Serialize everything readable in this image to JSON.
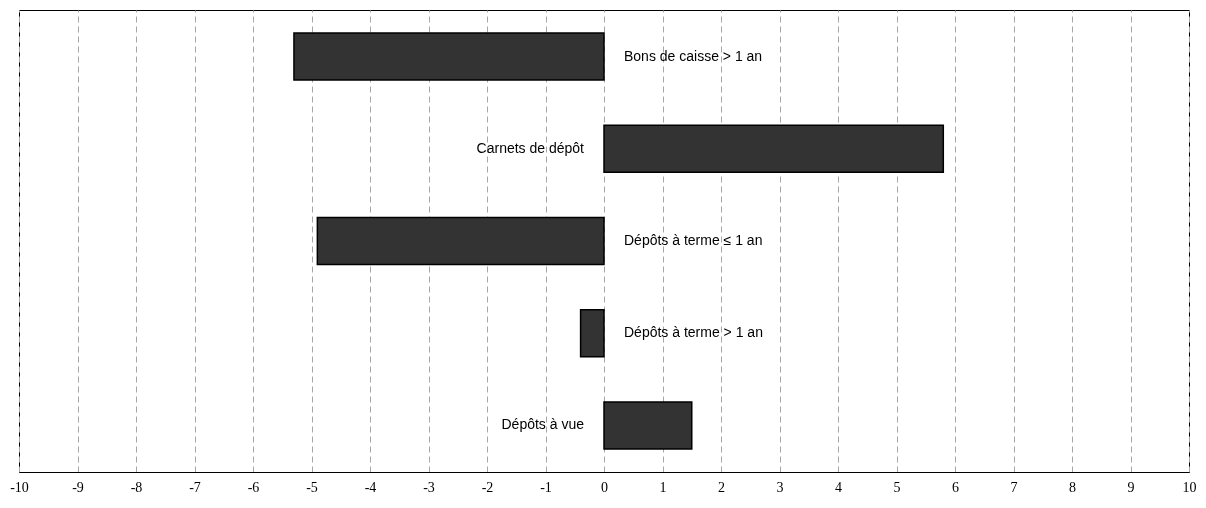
{
  "chart_data": {
    "type": "bar",
    "orientation": "horizontal",
    "categories": [
      "Bons de caisse > 1 an",
      "Carnets de dépôt",
      "Dépôts à terme ≤ 1 an",
      "Dépôts à terme > 1 an",
      "Dépôts à vue"
    ],
    "values": [
      -5.3,
      5.8,
      -4.9,
      -0.4,
      1.5
    ],
    "color": "#333333",
    "xlim": [
      -10,
      10
    ],
    "xticks": [
      -10,
      -9,
      -8,
      -7,
      -6,
      -5,
      -4,
      -3,
      -2,
      -1,
      0,
      1,
      2,
      3,
      4,
      5,
      6,
      7,
      8,
      9,
      10
    ],
    "grid": "x"
  }
}
